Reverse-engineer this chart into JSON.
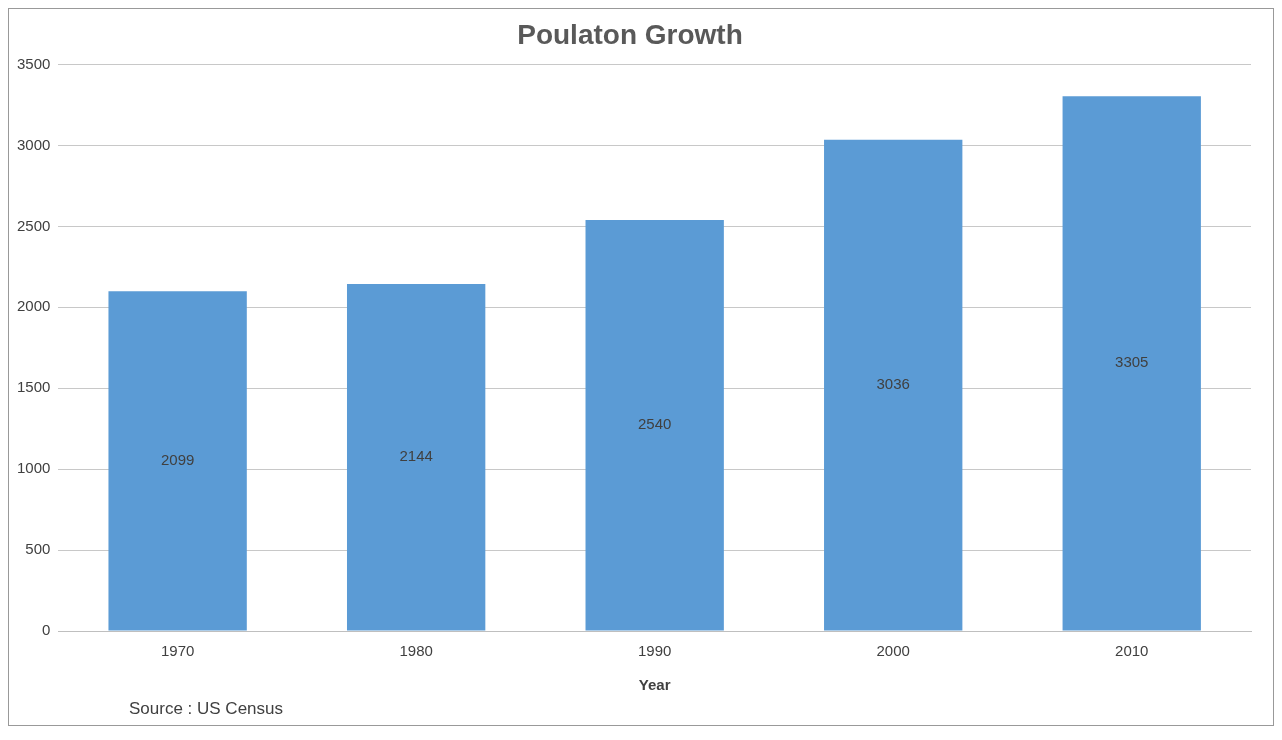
{
  "chart_data": {
    "type": "bar",
    "title": "Poulaton Growth",
    "xlabel": "Year",
    "categories": [
      "1970",
      "1980",
      "1990",
      "2000",
      "2010"
    ],
    "values": [
      2099,
      2144,
      2540,
      3036,
      3305
    ],
    "color": "#5b9bd5",
    "ylim": [
      0,
      3500
    ],
    "yticks": [
      0,
      500,
      1000,
      1500,
      2000,
      2500,
      3000,
      3500
    ],
    "grid": "y",
    "data_labels": true,
    "annotations": [
      "Source : US Census"
    ]
  }
}
